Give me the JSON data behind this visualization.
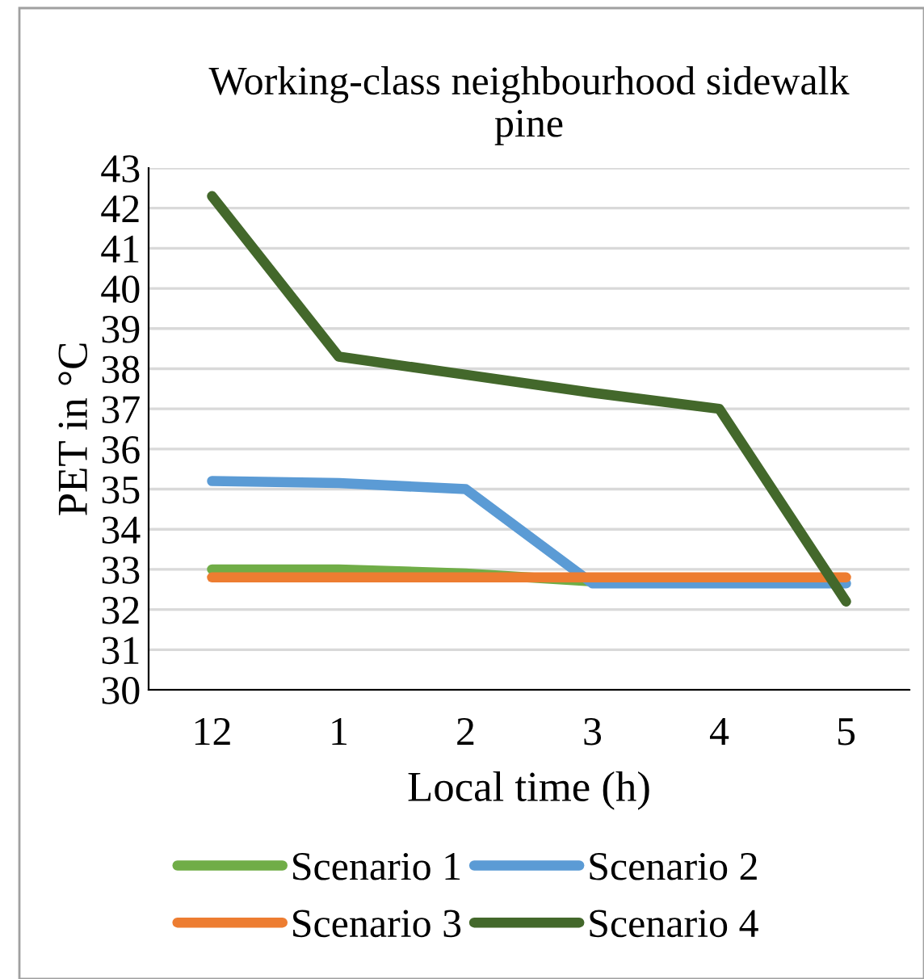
{
  "chart_data": {
    "type": "line",
    "title": "Working-class neighbourhood sidewalk\npine",
    "xlabel": "Local time (h)",
    "ylabel": "PET in °C",
    "categories": [
      "12",
      "1",
      "2",
      "3",
      "4",
      "5"
    ],
    "series": [
      {
        "name": "Scenario 1",
        "color": "#70ad47",
        "values": [
          33.0,
          33.0,
          32.9,
          32.7,
          null,
          null
        ]
      },
      {
        "name": "Scenario 2",
        "color": "#5b9bd5",
        "values": [
          35.2,
          35.15,
          35.0,
          32.65,
          32.65,
          32.65
        ]
      },
      {
        "name": "Scenario 3",
        "color": "#ed7d31",
        "values": [
          32.8,
          32.8,
          32.8,
          32.8,
          32.8,
          32.8
        ]
      },
      {
        "name": "Scenario 4",
        "color": "#43682b",
        "values": [
          42.3,
          38.3,
          37.85,
          37.4,
          37.0,
          32.2
        ]
      }
    ],
    "ylim": [
      30,
      43
    ],
    "yticks": [
      30,
      31,
      32,
      33,
      34,
      35,
      36,
      37,
      38,
      39,
      40,
      41,
      42,
      43
    ],
    "grid": "y",
    "legend": "bottom",
    "marker": "none",
    "line_style": "solid"
  }
}
